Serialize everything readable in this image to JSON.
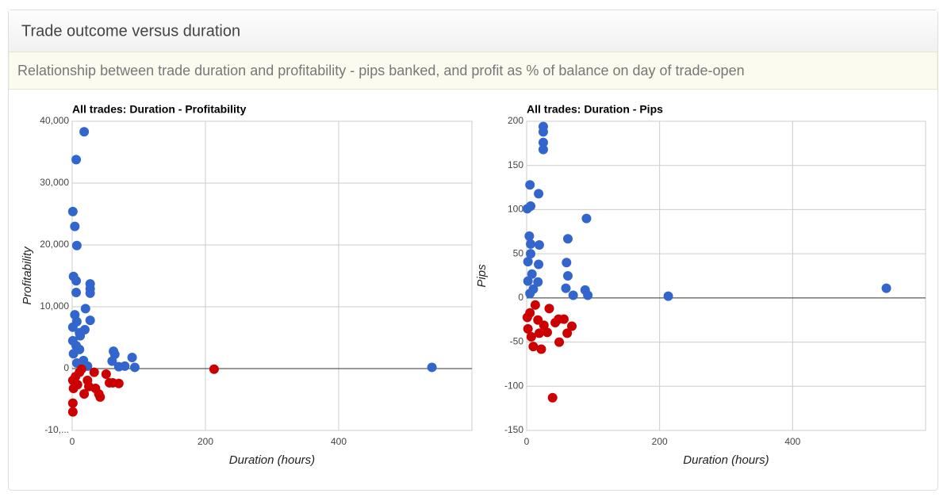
{
  "header": {
    "title": "Trade outcome versus duration",
    "subtitle": "Relationship between trade duration and profitability - pips banked, and profit as % of balance on day of trade-open"
  },
  "chart_data": [
    {
      "type": "scatter",
      "title": "All trades: Duration - Profitability",
      "x_label": "Duration (hours)",
      "y_label": "Profitability",
      "xlim": [
        0,
        600
      ],
      "xticks": [
        0,
        200,
        400
      ],
      "ylim": [
        -10000,
        40000
      ],
      "yticks": [
        {
          "value": -10000,
          "label": "-10,..."
        },
        0,
        {
          "value": 10000,
          "label": "10,000"
        },
        {
          "value": 20000,
          "label": "20,000"
        },
        {
          "value": 30000,
          "label": "30,000"
        },
        {
          "value": 40000,
          "label": "40,000"
        }
      ],
      "grid": true,
      "series": [
        {
          "color": "#3366cc",
          "x": [
            18,
            6,
            1,
            4,
            7,
            2,
            6,
            6,
            27,
            27,
            27,
            20,
            4,
            27,
            1,
            7,
            19,
            11,
            12,
            1,
            6,
            11,
            62,
            64,
            90,
            60,
            79,
            70,
            94,
            540,
            2,
            17,
            7,
            23
          ],
          "values": [
            38300,
            33800,
            25400,
            23000,
            19900,
            14900,
            14200,
            12300,
            13700,
            12900,
            12200,
            9700,
            8700,
            7800,
            6700,
            7600,
            6300,
            5800,
            5300,
            4500,
            3700,
            3100,
            2800,
            2300,
            1800,
            1200,
            400,
            300,
            200,
            200,
            2400,
            1300,
            900,
            400
          ]
        },
        {
          "color": "#cc0000",
          "x": [
            213,
            1,
            1,
            42,
            40,
            18,
            35,
            56,
            70,
            61,
            51,
            33,
            14,
            2,
            8,
            23,
            5,
            11,
            25,
            1
          ],
          "values": [
            -100,
            -7000,
            -5600,
            -4600,
            -4100,
            -4100,
            -3200,
            -2300,
            -2400,
            -2300,
            -900,
            -600,
            -100,
            -3200,
            -2600,
            -1900,
            -1300,
            -600,
            -2900,
            -1900
          ]
        }
      ]
    },
    {
      "type": "scatter",
      "title": "All trades: Duration - Pips",
      "x_label": "Duration (hours)",
      "y_label": "Pips",
      "xlim": [
        0,
        600
      ],
      "xticks": [
        0,
        200,
        400
      ],
      "ylim": [
        -150,
        200
      ],
      "yticks": [
        -150,
        -100,
        -50,
        0,
        50,
        100,
        150,
        200
      ],
      "grid": true,
      "series": [
        {
          "color": "#3366cc",
          "x": [
            25,
            25,
            25,
            25,
            5,
            18,
            6,
            1,
            90,
            4,
            62,
            6,
            19,
            6,
            60,
            18,
            2,
            62,
            8,
            2,
            17,
            59,
            88,
            70,
            92,
            213,
            541,
            10,
            5
          ],
          "values": [
            194,
            188,
            176,
            168,
            128,
            118,
            104,
            101,
            90,
            70,
            67,
            61,
            60,
            50,
            40,
            38,
            41,
            25,
            27,
            19,
            18,
            11,
            9,
            3,
            3,
            2,
            11,
            10,
            5
          ]
        },
        {
          "color": "#cc0000",
          "x": [
            39,
            22,
            49,
            10,
            61,
            31,
            68,
            43,
            56,
            48,
            34,
            17,
            2,
            7,
            19,
            5,
            13,
            1,
            26
          ],
          "values": [
            -113,
            -58,
            -50,
            -55,
            -40,
            -39,
            -32,
            -28,
            -24,
            -24,
            -12,
            -25,
            -35,
            -44,
            -40,
            -17,
            -8,
            -22,
            -31
          ]
        }
      ]
    }
  ]
}
